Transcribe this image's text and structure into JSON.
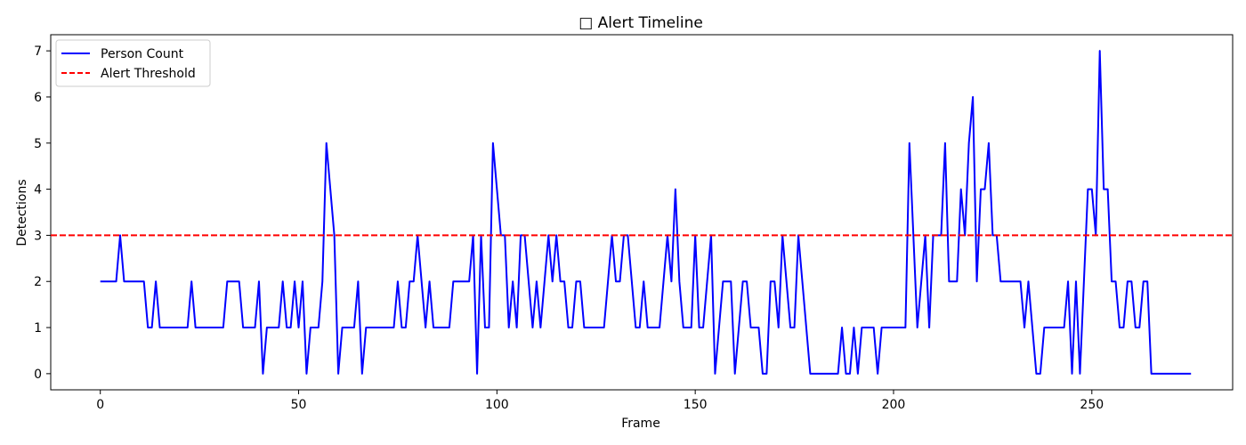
{
  "chart_data": {
    "type": "line",
    "title": "□ Alert Timeline",
    "xlabel": "Frame",
    "ylabel": "Detections",
    "xlim": [
      -12.5,
      285.5
    ],
    "ylim": [
      -0.35,
      7.35
    ],
    "xticks": [
      0,
      50,
      100,
      150,
      200,
      250
    ],
    "yticks": [
      0,
      1,
      2,
      3,
      4,
      5,
      6,
      7
    ],
    "grid": false,
    "legend_position": "upper-left",
    "series": [
      {
        "name": "Person Count",
        "color": "#0000ff",
        "style": "solid",
        "x_start": 0,
        "x_step": 1,
        "values": [
          2,
          2,
          2,
          2,
          2,
          3,
          2,
          2,
          2,
          2,
          2,
          2,
          1,
          1,
          2,
          1,
          1,
          1,
          1,
          1,
          1,
          1,
          1,
          2,
          1,
          1,
          1,
          1,
          1,
          1,
          1,
          1,
          2,
          2,
          2,
          2,
          1,
          1,
          1,
          1,
          2,
          0,
          1,
          1,
          1,
          1,
          2,
          1,
          1,
          2,
          1,
          2,
          0,
          1,
          1,
          1,
          2,
          5,
          4,
          3,
          0,
          1,
          1,
          1,
          1,
          2,
          0,
          1,
          1,
          1,
          1,
          1,
          1,
          1,
          1,
          2,
          1,
          1,
          2,
          2,
          3,
          2,
          1,
          2,
          1,
          1,
          1,
          1,
          1,
          2,
          2,
          2,
          2,
          2,
          3,
          0,
          3,
          1,
          1,
          5,
          4,
          3,
          3,
          1,
          2,
          1,
          3,
          3,
          2,
          1,
          2,
          1,
          2,
          3,
          2,
          3,
          2,
          2,
          1,
          1,
          2,
          2,
          1,
          1,
          1,
          1,
          1,
          1,
          2,
          3,
          2,
          2,
          3,
          3,
          2,
          1,
          1,
          2,
          1,
          1,
          1,
          1,
          2,
          3,
          2,
          4,
          2,
          1,
          1,
          1,
          3,
          1,
          1,
          2,
          3,
          0,
          1,
          2,
          2,
          2,
          0,
          1,
          2,
          2,
          1,
          1,
          1,
          0,
          0,
          2,
          2,
          1,
          3,
          2,
          1,
          1,
          3,
          2,
          1,
          0,
          0,
          0,
          0,
          0,
          0,
          0,
          0,
          1,
          0,
          0,
          1,
          0,
          1,
          1,
          1,
          1,
          0,
          1,
          1,
          1,
          1,
          1,
          1,
          1,
          5,
          3,
          1,
          2,
          3,
          1,
          3,
          3,
          3,
          5,
          2,
          2,
          2,
          4,
          3,
          5,
          6,
          2,
          4,
          4,
          5,
          3,
          3,
          2,
          2,
          2,
          2,
          2,
          2,
          1,
          2,
          1,
          0,
          0,
          1,
          1,
          1,
          1,
          1,
          1,
          2,
          0,
          2,
          0,
          2,
          4,
          4,
          3,
          7,
          4,
          4,
          2,
          2,
          1,
          1,
          2,
          2,
          1,
          1,
          2,
          2,
          0,
          0,
          0,
          0,
          0,
          0,
          0,
          0,
          0,
          0,
          0
        ]
      },
      {
        "name": "Alert Threshold",
        "color": "#ff0000",
        "style": "dashed",
        "type": "hline",
        "y": 3
      }
    ]
  }
}
